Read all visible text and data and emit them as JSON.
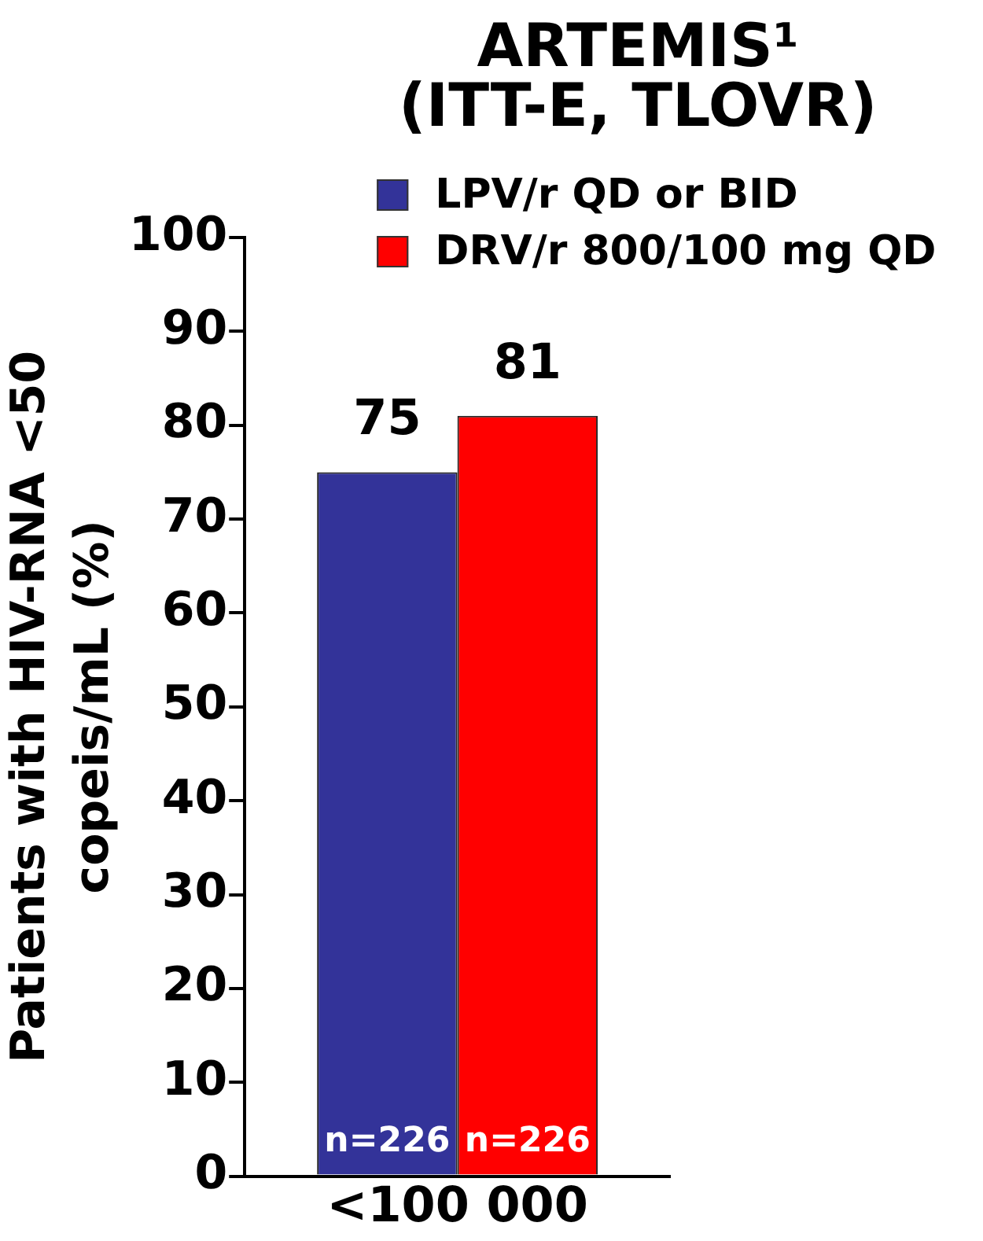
{
  "chart_data": {
    "type": "bar",
    "title": "ARTEMIS¹\n(ITT-E, TLOVR)",
    "ylabel": "Patients with HIV-RNA <50\ncopeis/mL (%)",
    "categories": [
      "<100 000"
    ],
    "series": [
      {
        "name": "LPV/r QD or BID",
        "color": "#333399",
        "values": [
          75
        ]
      },
      {
        "name": "DRV/r 800/100 mg QD",
        "color": "#ff0000",
        "values": [
          81
        ]
      }
    ],
    "ylim": [
      0,
      100
    ],
    "yticks": [
      0,
      10,
      20,
      30,
      40,
      50,
      60,
      70,
      80,
      90,
      100
    ],
    "grid": false,
    "legend": "top right",
    "data_labels": true,
    "annotations": [
      "n=226",
      "n=226"
    ]
  }
}
